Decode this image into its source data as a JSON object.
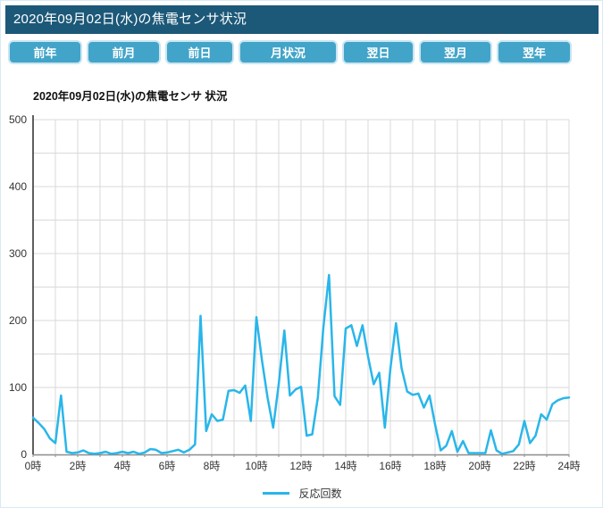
{
  "header": {
    "title": "2020年09月02日(水)の焦電センサ状況"
  },
  "nav": {
    "buttons": [
      {
        "label": "前年"
      },
      {
        "label": "前月"
      },
      {
        "label": "前日"
      },
      {
        "label": "月状況"
      },
      {
        "label": "翌日"
      },
      {
        "label": "翌月"
      },
      {
        "label": "翌年"
      }
    ]
  },
  "colors": {
    "header_bg": "#1C5878",
    "button_bg": "#42A4C8",
    "line": "#29B6EA",
    "grid": "#D9D9D9",
    "axis_left": "#2B2B2B",
    "axis_bottom": "#8C8C8C",
    "tick_text": "#333333"
  },
  "chart_data": {
    "type": "line",
    "title": "2020年09月02日(水)の焦電センサ 状況",
    "xlabel": "",
    "ylabel": "",
    "xlim_hours": [
      0,
      24
    ],
    "ylim": [
      0,
      500
    ],
    "y_ticks": [
      0,
      100,
      200,
      300,
      400,
      500
    ],
    "y_minor_step": 50,
    "x_tick_labels": [
      "0時",
      "2時",
      "4時",
      "6時",
      "8時",
      "10時",
      "12時",
      "14時",
      "16時",
      "18時",
      "20時",
      "22時",
      "24時"
    ],
    "x_tick_hours": [
      0,
      2,
      4,
      6,
      8,
      10,
      12,
      14,
      16,
      18,
      20,
      22,
      24
    ],
    "grid": true,
    "legend": {
      "label": "反応回数",
      "position": "bottom-center"
    },
    "series": [
      {
        "name": "反応回数",
        "color": "#29B6EA",
        "x_start_hour": 0,
        "x_interval_minutes": 15,
        "values": [
          55,
          47,
          38,
          24,
          17,
          88,
          4,
          2,
          3,
          6,
          2,
          1,
          2,
          4,
          1,
          2,
          4,
          2,
          4,
          1,
          3,
          8,
          7,
          2,
          3,
          5,
          7,
          3,
          7,
          15,
          207,
          35,
          60,
          50,
          52,
          95,
          96,
          92,
          103,
          50,
          205,
          140,
          85,
          40,
          105,
          185,
          88,
          97,
          101,
          28,
          30,
          85,
          190,
          268,
          87,
          74,
          188,
          193,
          162,
          193,
          146,
          105,
          122,
          40,
          128,
          196,
          129,
          94,
          89,
          91,
          70,
          88,
          45,
          6,
          13,
          35,
          4,
          20,
          2,
          2,
          2,
          2,
          36,
          6,
          1,
          3,
          5,
          15,
          50,
          17,
          28,
          60,
          52,
          75,
          81,
          84,
          85
        ]
      }
    ]
  }
}
